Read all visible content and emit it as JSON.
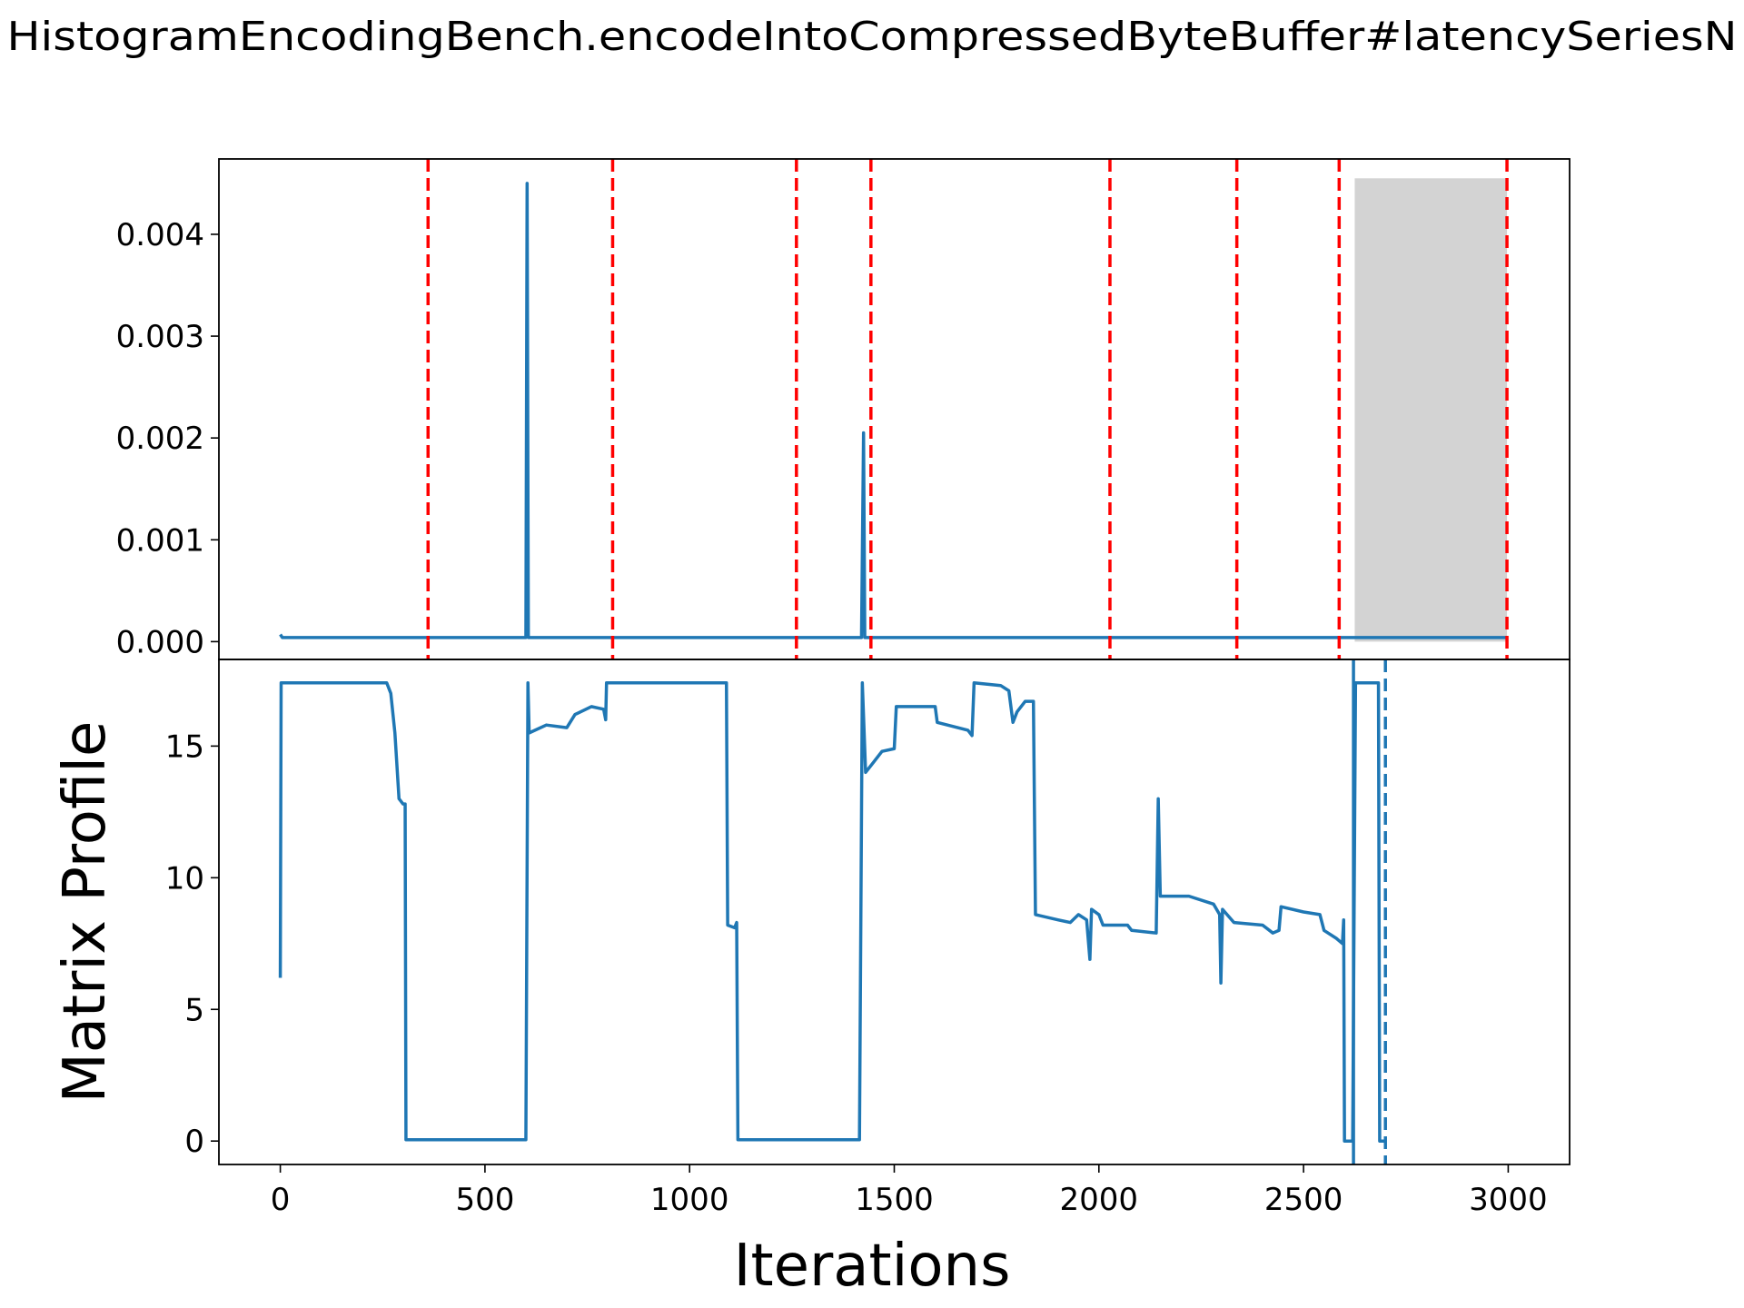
{
  "chart_data": [
    {
      "type": "line",
      "title": "HistogramEncodingBench.encodeIntoCompressedByteBuffer#latencySeriesN",
      "xlim": [
        -150,
        3150
      ],
      "ylim": [
        -0.000175,
        0.00474
      ],
      "yticks": [
        {
          "value": 0,
          "label": "0.000"
        },
        {
          "value": 0.001,
          "label": "0.001"
        },
        {
          "value": 0.002,
          "label": "0.002"
        },
        {
          "value": 0.003,
          "label": "0.003"
        },
        {
          "value": 0.004,
          "label": "0.004"
        }
      ],
      "x": [
        0,
        5,
        600,
        603,
        606,
        1420,
        1425,
        1428,
        3000
      ],
      "values": [
        7e-05,
        4e-05,
        4e-05,
        0.0045,
        4e-05,
        4e-05,
        0.00205,
        4e-05,
        4e-05
      ],
      "color": "#1f77b4",
      "vlines": {
        "x": [
          361,
          812,
          1261,
          1443,
          2027,
          2337,
          2587,
          2997
        ],
        "color": "#ff0000",
        "style": "dashed"
      },
      "shaded_region": {
        "x": [
          2625,
          2997
        ],
        "y": [
          0,
          0.00455
        ],
        "color": "#d3d3d3"
      }
    },
    {
      "type": "line",
      "xlabel": "Iterations",
      "ylabel": "Matrix Profile",
      "xlim": [
        -150,
        3150
      ],
      "ylim": [
        -0.89,
        18.29
      ],
      "xticks": [
        0,
        500,
        1000,
        1500,
        2000,
        2500,
        3000
      ],
      "yticks": [
        0,
        5,
        10,
        15
      ],
      "x": [
        0,
        2,
        260,
        270,
        280,
        290,
        300,
        305,
        307,
        600,
        605,
        608,
        650,
        700,
        720,
        760,
        790,
        795,
        797,
        1090,
        1093,
        1110,
        1115,
        1118,
        1415,
        1422,
        1430,
        1450,
        1470,
        1500,
        1505,
        1600,
        1605,
        1680,
        1690,
        1695,
        1760,
        1780,
        1790,
        1800,
        1820,
        1840,
        1845,
        1900,
        1930,
        1950,
        1970,
        1978,
        1982,
        2000,
        2010,
        2070,
        2080,
        2140,
        2145,
        2150,
        2220,
        2280,
        2295,
        2298,
        2302,
        2330,
        2400,
        2425,
        2440,
        2445,
        2500,
        2540,
        2550,
        2580,
        2595,
        2598,
        2600,
        2620,
        2627,
        2683,
        2686,
        2700
      ],
      "values": [
        6.2,
        17.4,
        17.4,
        17.0,
        15.5,
        13.0,
        12.8,
        12.8,
        0.05,
        0.05,
        17.4,
        15.5,
        15.8,
        15.7,
        16.2,
        16.5,
        16.4,
        16.0,
        17.4,
        17.4,
        8.2,
        8.1,
        8.3,
        0.05,
        0.05,
        17.4,
        14.0,
        14.4,
        14.8,
        14.9,
        16.5,
        16.5,
        15.9,
        15.6,
        15.4,
        17.4,
        17.3,
        17.1,
        15.9,
        16.3,
        16.7,
        16.7,
        8.6,
        8.4,
        8.3,
        8.6,
        8.4,
        6.9,
        8.8,
        8.6,
        8.2,
        8.2,
        8.0,
        7.9,
        13.0,
        9.3,
        9.3,
        9.0,
        8.6,
        6.0,
        8.8,
        8.3,
        8.2,
        7.9,
        8.0,
        8.9,
        8.7,
        8.6,
        8.0,
        7.7,
        7.5,
        8.4,
        0,
        0,
        17.4,
        17.4,
        0,
        0
      ],
      "color": "#1f77b4",
      "vlines": [
        {
          "x": 2622,
          "style": "solid"
        },
        {
          "x": 2700,
          "style": "dashed"
        }
      ]
    }
  ]
}
